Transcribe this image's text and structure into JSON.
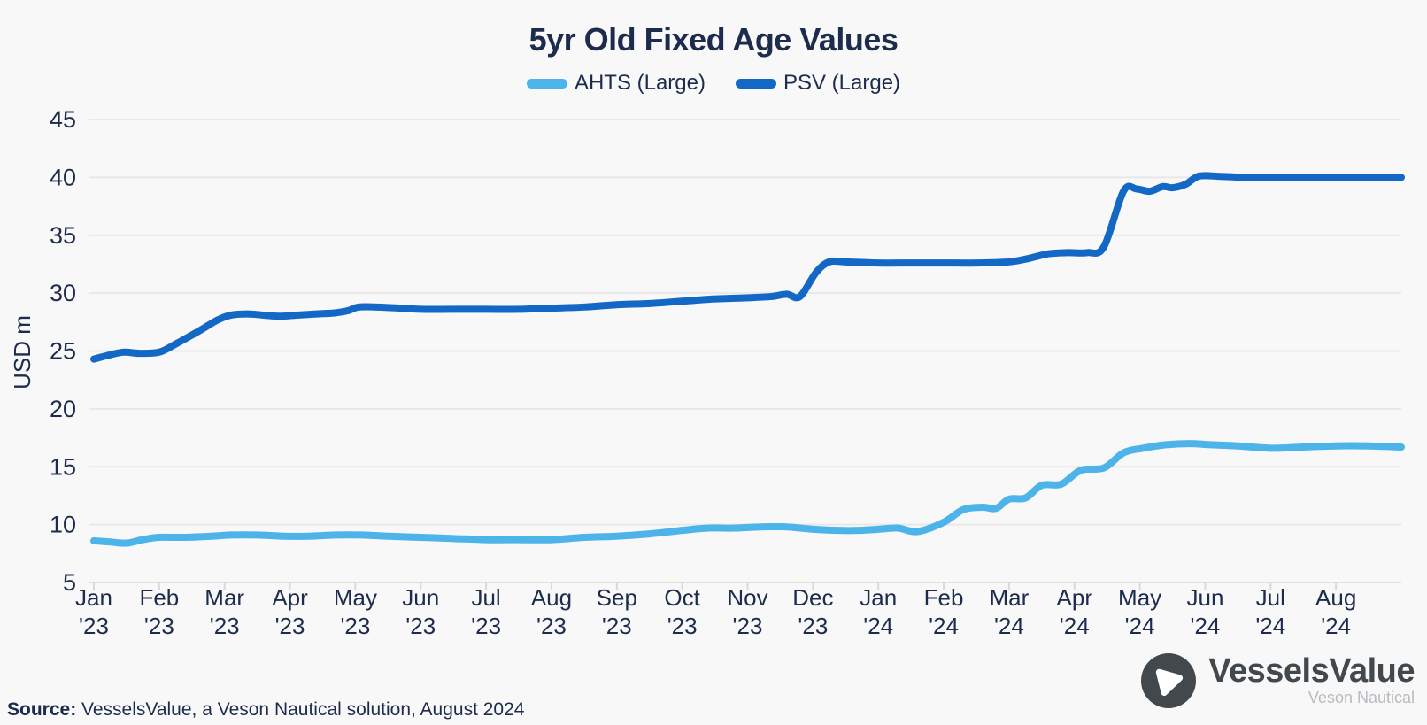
{
  "header": {
    "title": "5yr Old Fixed Age Values"
  },
  "chart_data": {
    "type": "line",
    "title": "5yr Old Fixed Age Values",
    "xlabel": "",
    "ylabel": "USD m",
    "ylim": [
      5,
      45
    ],
    "yticks": [
      5,
      10,
      15,
      20,
      25,
      30,
      35,
      40,
      45
    ],
    "grid": "horizontal",
    "legend_position": "top",
    "x_unit": "months since Jan 2023, axis spans Jan '23 through end of Aug '24",
    "x_max": 20,
    "xtick_labels": [
      {
        "month": "Jan",
        "year": "'23"
      },
      {
        "month": "Feb",
        "year": "'23"
      },
      {
        "month": "Mar",
        "year": "'23"
      },
      {
        "month": "Apr",
        "year": "'23"
      },
      {
        "month": "May",
        "year": "'23"
      },
      {
        "month": "Jun",
        "year": "'23"
      },
      {
        "month": "Jul",
        "year": "'23"
      },
      {
        "month": "Aug",
        "year": "'23"
      },
      {
        "month": "Sep",
        "year": "'23"
      },
      {
        "month": "Oct",
        "year": "'23"
      },
      {
        "month": "Nov",
        "year": "'23"
      },
      {
        "month": "Dec",
        "year": "'23"
      },
      {
        "month": "Jan",
        "year": "'24"
      },
      {
        "month": "Feb",
        "year": "'24"
      },
      {
        "month": "Mar",
        "year": "'24"
      },
      {
        "month": "Apr",
        "year": "'24"
      },
      {
        "month": "May",
        "year": "'24"
      },
      {
        "month": "Jun",
        "year": "'24"
      },
      {
        "month": "Jul",
        "year": "'24"
      },
      {
        "month": "Aug",
        "year": "'24"
      }
    ],
    "series": [
      {
        "name": "AHTS (Large)",
        "color": "#4cb4e8",
        "points": [
          [
            0,
            8.6
          ],
          [
            0.25,
            8.5
          ],
          [
            0.5,
            8.4
          ],
          [
            0.75,
            8.7
          ],
          [
            1,
            8.9
          ],
          [
            1.4,
            8.9
          ],
          [
            1.8,
            9.0
          ],
          [
            2.1,
            9.1
          ],
          [
            2.5,
            9.1
          ],
          [
            2.9,
            9.0
          ],
          [
            3.3,
            9.0
          ],
          [
            3.7,
            9.1
          ],
          [
            4.1,
            9.1
          ],
          [
            4.5,
            9.0
          ],
          [
            5,
            8.9
          ],
          [
            5.5,
            8.8
          ],
          [
            6,
            8.7
          ],
          [
            6.5,
            8.7
          ],
          [
            7,
            8.7
          ],
          [
            7.5,
            8.9
          ],
          [
            8,
            9.0
          ],
          [
            8.5,
            9.2
          ],
          [
            9,
            9.5
          ],
          [
            9.4,
            9.7
          ],
          [
            9.8,
            9.7
          ],
          [
            10.2,
            9.8
          ],
          [
            10.6,
            9.8
          ],
          [
            11,
            9.6
          ],
          [
            11.4,
            9.5
          ],
          [
            11.7,
            9.5
          ],
          [
            12,
            9.6
          ],
          [
            12.3,
            9.7
          ],
          [
            12.6,
            9.4
          ],
          [
            13,
            10.2
          ],
          [
            13.3,
            11.3
          ],
          [
            13.6,
            11.5
          ],
          [
            13.8,
            11.4
          ],
          [
            14,
            12.2
          ],
          [
            14.25,
            12.3
          ],
          [
            14.5,
            13.4
          ],
          [
            14.8,
            13.5
          ],
          [
            15.1,
            14.7
          ],
          [
            15.45,
            14.9
          ],
          [
            15.75,
            16.2
          ],
          [
            16.05,
            16.6
          ],
          [
            16.4,
            16.9
          ],
          [
            16.75,
            17.0
          ],
          [
            17.1,
            16.9
          ],
          [
            17.5,
            16.8
          ],
          [
            18,
            16.6
          ],
          [
            18.5,
            16.7
          ],
          [
            19,
            16.8
          ],
          [
            19.5,
            16.8
          ],
          [
            20,
            16.7
          ]
        ]
      },
      {
        "name": "PSV (Large)",
        "color": "#1268c4",
        "points": [
          [
            0,
            24.3
          ],
          [
            0.2,
            24.6
          ],
          [
            0.45,
            24.9
          ],
          [
            0.7,
            24.8
          ],
          [
            1,
            24.9
          ],
          [
            1.25,
            25.6
          ],
          [
            1.6,
            26.7
          ],
          [
            1.9,
            27.7
          ],
          [
            2.1,
            28.1
          ],
          [
            2.35,
            28.2
          ],
          [
            2.6,
            28.1
          ],
          [
            2.85,
            28.0
          ],
          [
            3.1,
            28.1
          ],
          [
            3.4,
            28.2
          ],
          [
            3.7,
            28.3
          ],
          [
            3.9,
            28.5
          ],
          [
            4.05,
            28.8
          ],
          [
            4.35,
            28.8
          ],
          [
            4.7,
            28.7
          ],
          [
            5,
            28.6
          ],
          [
            5.5,
            28.6
          ],
          [
            6,
            28.6
          ],
          [
            6.5,
            28.6
          ],
          [
            7,
            28.7
          ],
          [
            7.5,
            28.8
          ],
          [
            8,
            29.0
          ],
          [
            8.5,
            29.1
          ],
          [
            9,
            29.3
          ],
          [
            9.5,
            29.5
          ],
          [
            10,
            29.6
          ],
          [
            10.35,
            29.7
          ],
          [
            10.6,
            29.9
          ],
          [
            10.8,
            29.7
          ],
          [
            11.05,
            31.8
          ],
          [
            11.25,
            32.7
          ],
          [
            11.5,
            32.7
          ],
          [
            12,
            32.6
          ],
          [
            12.5,
            32.6
          ],
          [
            13,
            32.6
          ],
          [
            13.5,
            32.6
          ],
          [
            14,
            32.7
          ],
          [
            14.3,
            33.0
          ],
          [
            14.6,
            33.4
          ],
          [
            14.9,
            33.5
          ],
          [
            15.2,
            33.5
          ],
          [
            15.45,
            34.0
          ],
          [
            15.75,
            38.8
          ],
          [
            15.95,
            39.0
          ],
          [
            16.15,
            38.8
          ],
          [
            16.35,
            39.2
          ],
          [
            16.5,
            39.1
          ],
          [
            16.7,
            39.4
          ],
          [
            16.9,
            40.1
          ],
          [
            17.2,
            40.1
          ],
          [
            17.6,
            40.0
          ],
          [
            18,
            40.0
          ],
          [
            18.5,
            40.0
          ],
          [
            19,
            40.0
          ],
          [
            19.5,
            40.0
          ],
          [
            20,
            40.0
          ]
        ]
      }
    ],
    "colors": {
      "text_navy": "#1d2b4d",
      "gridline": "#e8e8e8",
      "tick": "#d9d9d9",
      "background": "#f8f8f8"
    }
  },
  "footer": {
    "source_label": "Source:",
    "source_text": " VesselsValue, a Veson Nautical solution, August 2024"
  },
  "logo": {
    "name": "VesselsValue",
    "subtitle": "Veson Nautical",
    "mark": "play-triangle-in-circle",
    "mark_color": "#43484c"
  }
}
